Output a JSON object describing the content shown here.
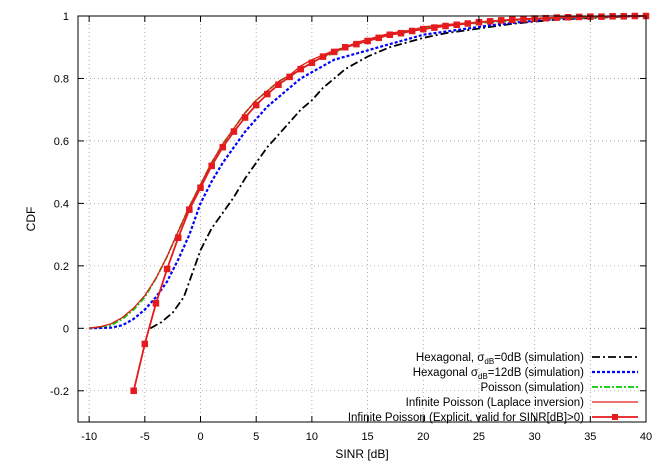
{
  "chart_data": {
    "type": "line",
    "xlabel": "SINR [dB]",
    "ylabel": "CDF",
    "xlim": [
      -11,
      40
    ],
    "ylim": [
      -0.3,
      1.0
    ],
    "xticks": [
      -10,
      -5,
      0,
      5,
      10,
      15,
      20,
      25,
      30,
      35,
      40
    ],
    "yticks": [
      -0.2,
      0,
      0.2,
      0.4,
      0.6,
      0.8,
      1
    ],
    "ytick_labels": [
      "-0.2",
      "0",
      "0.2",
      "0.4",
      "0.6",
      "0.8",
      "1"
    ],
    "grid": true,
    "legend_position": "bottom-right",
    "series": [
      {
        "legend_html": "Hexagonal, σ<tspan class='legend-sub' dy='3'>dB</tspan><tspan dy='-3'>=0dB (simulation)</tspan>",
        "color": "#000000",
        "dash": "8,3,2,3",
        "width": 1.8,
        "markers": false,
        "x": [
          -4.5,
          -3.5,
          -2.5,
          -1.5,
          -1,
          0,
          1,
          2,
          3,
          4,
          5,
          6,
          7,
          8,
          9,
          10,
          11,
          12,
          13,
          14,
          15,
          16,
          17,
          18,
          19,
          20,
          22,
          24,
          26,
          28,
          30,
          32,
          34,
          36,
          38,
          40
        ],
        "y": [
          0.0,
          0.02,
          0.05,
          0.1,
          0.15,
          0.25,
          0.32,
          0.37,
          0.42,
          0.48,
          0.53,
          0.58,
          0.62,
          0.66,
          0.7,
          0.73,
          0.77,
          0.8,
          0.83,
          0.85,
          0.87,
          0.885,
          0.9,
          0.91,
          0.92,
          0.93,
          0.945,
          0.955,
          0.965,
          0.975,
          0.982,
          0.988,
          0.992,
          0.995,
          0.998,
          1.0
        ]
      },
      {
        "legend_html": "Hexagonal σ<tspan class='legend-sub' dy='3'>dB</tspan><tspan dy='-3'>=12dB (simulation)</tspan>",
        "color": "#0000ff",
        "dash": "3,2",
        "width": 2.2,
        "markers": false,
        "x": [
          -10,
          -8,
          -7,
          -6,
          -5,
          -4,
          -3,
          -2,
          -1,
          0,
          1,
          2,
          3,
          4,
          5,
          6,
          7,
          8,
          9,
          10,
          11,
          12,
          13,
          14,
          15,
          16,
          17,
          18,
          19,
          20,
          22,
          24,
          26,
          28,
          30,
          32,
          34,
          36,
          38,
          40
        ],
        "y": [
          0.0,
          0.002,
          0.01,
          0.03,
          0.06,
          0.1,
          0.15,
          0.22,
          0.3,
          0.4,
          0.47,
          0.53,
          0.58,
          0.63,
          0.67,
          0.71,
          0.74,
          0.77,
          0.8,
          0.82,
          0.84,
          0.86,
          0.87,
          0.88,
          0.89,
          0.9,
          0.91,
          0.92,
          0.93,
          0.94,
          0.95,
          0.96,
          0.97,
          0.978,
          0.985,
          0.99,
          0.994,
          0.997,
          0.999,
          1.0
        ]
      },
      {
        "legend_html": "Poisson (simulation)",
        "color": "#00cc00",
        "dash": "6,2,2,2",
        "width": 1.8,
        "markers": false,
        "x": [
          -10,
          -8,
          -7,
          -6,
          -5,
          -4,
          -3,
          -2,
          -1,
          0,
          1,
          2,
          3,
          4,
          5,
          6,
          7,
          8,
          9,
          10,
          11,
          12,
          13,
          14,
          15,
          16,
          17,
          18,
          19,
          20,
          22,
          24,
          26,
          28,
          30,
          32,
          34,
          36,
          38,
          40
        ],
        "y": [
          0.0,
          0.01,
          0.03,
          0.06,
          0.1,
          0.16,
          0.23,
          0.31,
          0.39,
          0.46,
          0.53,
          0.59,
          0.64,
          0.69,
          0.73,
          0.76,
          0.79,
          0.81,
          0.83,
          0.85,
          0.87,
          0.88,
          0.9,
          0.91,
          0.92,
          0.93,
          0.94,
          0.95,
          0.955,
          0.96,
          0.97,
          0.975,
          0.98,
          0.985,
          0.99,
          0.993,
          0.995,
          0.997,
          0.999,
          1.0
        ]
      },
      {
        "legend_html": "Infinite Poisson (Laplace inversion)",
        "color": "#e41a1c",
        "dash": "",
        "width": 1.3,
        "markers": false,
        "x": [
          -10,
          -9,
          -8,
          -7,
          -6,
          -5,
          -4,
          -3,
          -2,
          -1,
          0,
          1,
          2,
          3,
          4,
          5,
          6,
          7,
          8,
          9,
          10,
          11,
          12,
          13,
          14,
          15,
          16,
          17,
          18,
          19,
          20,
          22,
          24,
          26,
          28,
          30,
          32,
          34,
          36,
          38,
          40
        ],
        "y": [
          0.0,
          0.005,
          0.015,
          0.035,
          0.065,
          0.105,
          0.16,
          0.23,
          0.31,
          0.39,
          0.46,
          0.53,
          0.59,
          0.64,
          0.69,
          0.73,
          0.76,
          0.79,
          0.81,
          0.84,
          0.86,
          0.875,
          0.89,
          0.9,
          0.915,
          0.925,
          0.935,
          0.945,
          0.95,
          0.955,
          0.965,
          0.972,
          0.978,
          0.983,
          0.987,
          0.991,
          0.994,
          0.996,
          0.998,
          0.999,
          1.0
        ]
      },
      {
        "legend_html": "Infinite Poisson (Explicit, valid for SINR[dB]>0)",
        "color": "#e41a1c",
        "dash": "",
        "width": 1.8,
        "markers": true,
        "x": [
          -6,
          -5,
          -4,
          -3,
          -2,
          -1,
          0,
          1,
          2,
          3,
          4,
          5,
          6,
          7,
          8,
          9,
          10,
          11,
          12,
          13,
          14,
          15,
          16,
          17,
          18,
          19,
          20,
          21,
          22,
          23,
          24,
          25,
          26,
          27,
          28,
          29,
          30,
          31,
          32,
          33,
          34,
          35,
          36,
          37,
          38,
          39,
          40
        ],
        "y": [
          -0.2,
          -0.05,
          0.08,
          0.19,
          0.29,
          0.38,
          0.45,
          0.52,
          0.58,
          0.63,
          0.675,
          0.715,
          0.75,
          0.78,
          0.805,
          0.83,
          0.85,
          0.87,
          0.885,
          0.9,
          0.91,
          0.92,
          0.93,
          0.94,
          0.945,
          0.952,
          0.958,
          0.963,
          0.968,
          0.972,
          0.976,
          0.98,
          0.983,
          0.986,
          0.988,
          0.99,
          0.992,
          0.993,
          0.995,
          0.996,
          0.997,
          0.998,
          0.998,
          0.999,
          0.999,
          1.0,
          1.0
        ]
      }
    ]
  }
}
